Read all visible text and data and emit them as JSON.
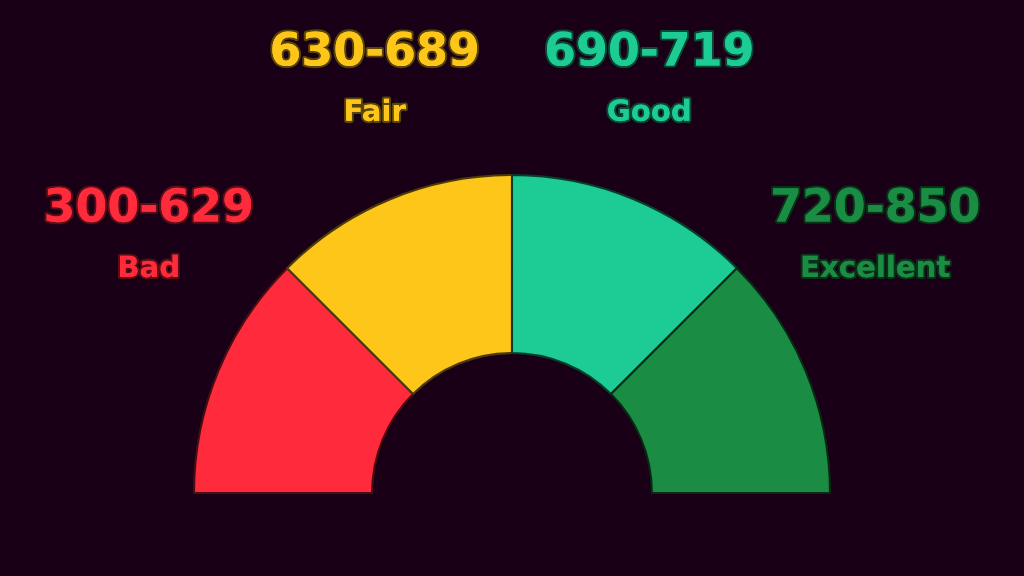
{
  "chart_data": {
    "type": "donut",
    "categories": [
      "Bad",
      "Fair",
      "Good",
      "Excellent"
    ],
    "values": [
      25,
      25,
      25,
      25
    ],
    "colors": [
      "#ff2a3c",
      "#ffc61a",
      "#1ccc94",
      "#1a8c44"
    ],
    "annotations": [
      "300-629",
      "630-689",
      "690-719",
      "720-850"
    ]
  }
}
